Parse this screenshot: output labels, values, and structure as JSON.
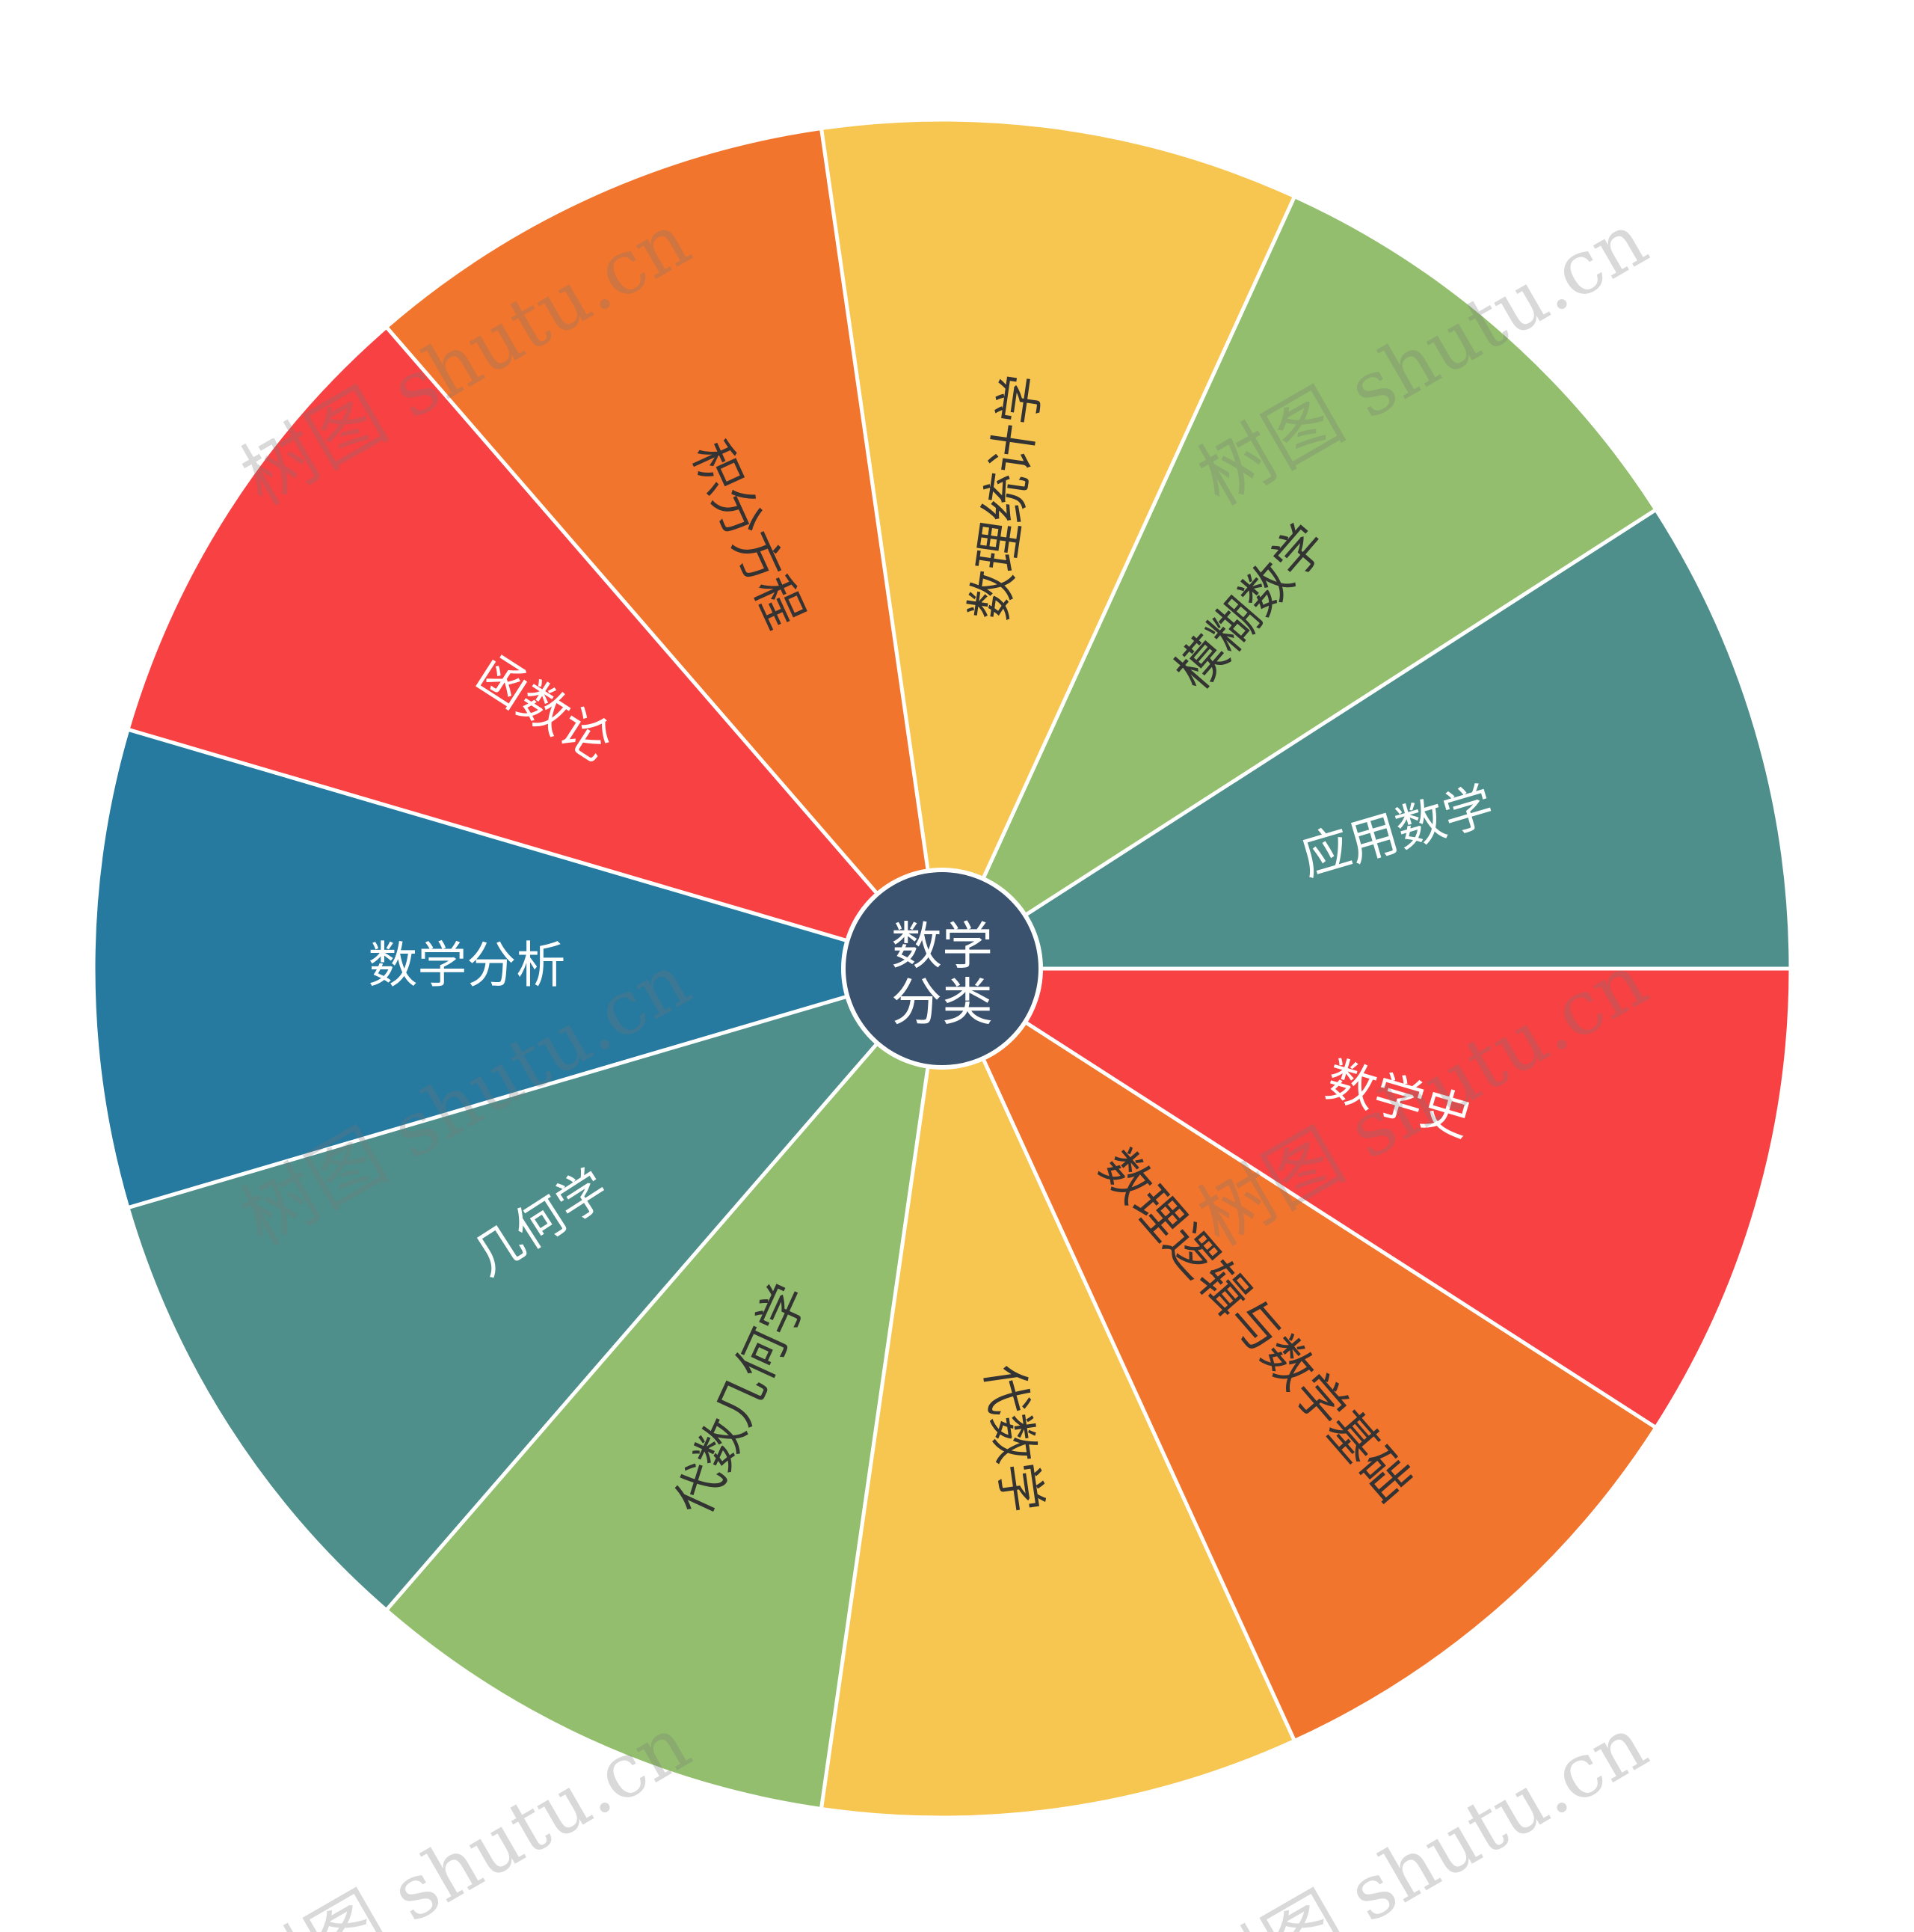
{
  "center": {
    "line1": "数学",
    "line2": "分类",
    "color": "#3A526E"
  },
  "segments": [
    {
      "label": "应用数学",
      "color": "#4E8F8B",
      "text_color": "#ffffff"
    },
    {
      "label": "模糊数学",
      "color": "#92BE6D",
      "text_color": "#333333"
    },
    {
      "label": "数理统计学",
      "color": "#F7C651",
      "text_color": "#333333"
    },
    {
      "label": "积分方程",
      "color": "#F1752D",
      "text_color": "#333333"
    },
    {
      "label": "函数论",
      "color": "#F84143",
      "text_color": "#ffffff"
    },
    {
      "label": "数学分析",
      "color": "#26799F",
      "text_color": "#ffffff"
    },
    {
      "label": "几何学",
      "color": "#4E8F8B",
      "text_color": "#ffffff"
    },
    {
      "label": "代数几何学",
      "color": "#92BE6D",
      "text_color": "#333333"
    },
    {
      "label": "代数学",
      "color": "#F7C651",
      "text_color": "#333333"
    },
    {
      "label": "数理逻辑与数学基础",
      "color": "#F1752D",
      "text_color": "#333333"
    },
    {
      "label": "数学史",
      "color": "#F84143",
      "text_color": "#ffffff"
    }
  ],
  "watermark": "树图 shutu.cn"
}
